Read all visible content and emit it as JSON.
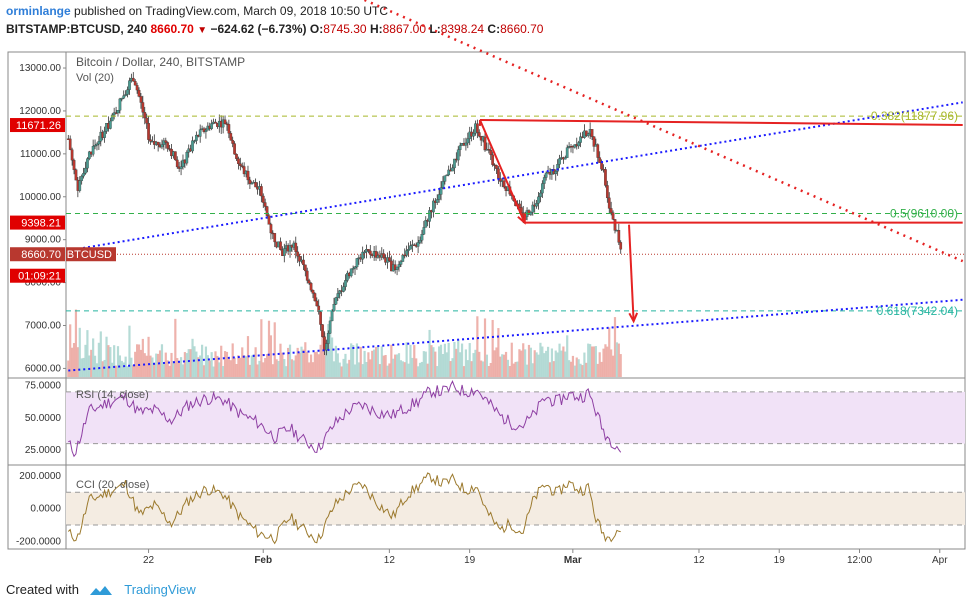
{
  "header": {
    "user": "orminlange",
    "published_text": "published on TradingView.com, March 09, 2018 10:50 UTC",
    "symbol": "BITSTAMP:BTCUSD, 240",
    "last": "8660.70",
    "change": "−624.62 (−6.73%)",
    "o_label": "O:",
    "o": "8745.30",
    "h_label": "H:",
    "h": "8867.00",
    "l_label": "L:",
    "l": "8398.24",
    "c_label": "C:",
    "c": "8660.70"
  },
  "footer": {
    "created_with": "Created with",
    "brand": "TradingView"
  },
  "colors": {
    "up": "#4a9b91",
    "down": "#b8382f",
    "wick": "#333333",
    "trend_blue": "#1a1aff",
    "trend_red": "#e52222",
    "fib_green": "#33b04a",
    "fib_olive": "#a8b82a",
    "fib_teal": "#26b5a0",
    "rsi": "#8e3fa3",
    "cci": "#9c7a2e",
    "rsi_band": "#f1e2f7",
    "cci_band": "#f4ece2"
  },
  "chart_data": [
    {
      "type": "candlestick",
      "title": "Bitcoin / Dollar, 240, BITSTAMP",
      "ylim": [
        5800,
        13350
      ],
      "y_ticks": [
        "13000.00",
        "12000.00",
        "11000.00",
        "10000.00",
        "9000.00",
        "8000.00",
        "7000.00",
        "6000.00"
      ],
      "y_tick_values": [
        13000,
        12000,
        11000,
        10000,
        9000,
        8000,
        7000,
        6000
      ],
      "x_ticks": [
        "22",
        "Feb",
        "12",
        "19",
        "Mar",
        "12",
        "19",
        "12:00",
        "Apr"
      ],
      "x_tick_days": [
        0,
        10,
        21,
        28,
        37,
        48,
        55,
        62,
        69
      ],
      "x_range_days": [
        -7.2,
        71.2
      ],
      "data_end_day": 41.3,
      "price_path": [
        [
          -7,
          11350
        ],
        [
          -6.2,
          10200
        ],
        [
          -5.2,
          11000
        ],
        [
          -3.2,
          11800
        ],
        [
          -1.9,
          12550
        ],
        [
          -1.3,
          12800
        ],
        [
          -0.7,
          12200
        ],
        [
          0.2,
          11200
        ],
        [
          1.5,
          11300
        ],
        [
          2.8,
          10650
        ],
        [
          4.2,
          11400
        ],
        [
          5.5,
          11700
        ],
        [
          6.8,
          11750
        ],
        [
          7.8,
          10800
        ],
        [
          8.8,
          10400
        ],
        [
          9.8,
          10100
        ],
        [
          10.6,
          9250
        ],
        [
          11.6,
          8700
        ],
        [
          12.6,
          8900
        ],
        [
          13.6,
          8300
        ],
        [
          14.6,
          7600
        ],
        [
          15.4,
          6400
        ],
        [
          16.2,
          7500
        ],
        [
          17.4,
          8200
        ],
        [
          18.6,
          8650
        ],
        [
          19.5,
          8700
        ],
        [
          20.5,
          8600
        ],
        [
          21.4,
          8300
        ],
        [
          22.5,
          8750
        ],
        [
          23.6,
          8950
        ],
        [
          24.6,
          9700
        ],
        [
          25.6,
          10250
        ],
        [
          26.6,
          10800
        ],
        [
          27.6,
          11300
        ],
        [
          28.6,
          11650
        ],
        [
          29.5,
          11100
        ],
        [
          30.6,
          10450
        ],
        [
          31.6,
          10100
        ],
        [
          32.6,
          9500
        ],
        [
          33.6,
          9800
        ],
        [
          34.6,
          10450
        ],
        [
          35.6,
          10700
        ],
        [
          36.6,
          11100
        ],
        [
          37.6,
          11350
        ],
        [
          38.4,
          11550
        ],
        [
          38.9,
          11200
        ],
        [
          39.6,
          10650
        ],
        [
          40.2,
          9800
        ],
        [
          40.8,
          9200
        ],
        [
          41.3,
          8660
        ]
      ],
      "volume_max_value": 1,
      "price_labels": [
        {
          "text": "11671.26",
          "value": 11671.26
        },
        {
          "text": "9398.21",
          "value": 9398.21
        },
        {
          "text": "8660.70",
          "value": 8660.7
        },
        {
          "text": "BTCUSD",
          "value": 8660.7
        },
        {
          "text": "01:09:21",
          "value": 8160
        }
      ],
      "fib_levels": [
        {
          "label": "0.382(11877.96)",
          "value": 11877.96
        },
        {
          "label": "0.5(9610.00)",
          "value": 9610.0
        },
        {
          "label": "0.618(7342.04)",
          "value": 7342.04
        }
      ],
      "volume_legend": "Vol (20)",
      "annotations": {
        "upper_trend_blue": [
          [
            -7,
            8750
          ],
          [
            71,
            12200
          ]
        ],
        "lower_trend_blue": [
          [
            -7,
            5950
          ],
          [
            71,
            7600
          ]
        ],
        "red_trend_dotted": [
          [
            11,
            15500
          ],
          [
            71,
            8500
          ]
        ],
        "red_box_top": [
          [
            28.9,
            11790
          ],
          [
            71,
            11671.26
          ]
        ],
        "red_box_bottom": [
          [
            32.8,
            9398.21
          ],
          [
            71,
            9398.21
          ]
        ],
        "red_arrow_diag": [
          [
            28.9,
            11790
          ],
          [
            32.8,
            9398.21
          ]
        ],
        "red_arrow_down": [
          [
            41.9,
            9350
          ],
          [
            42.3,
            7100
          ]
        ]
      }
    },
    {
      "type": "line",
      "name": "RSI (14, close)",
      "ylim": [
        15,
        80
      ],
      "y_ticks": [
        "75.0000",
        "50.0000",
        "25.0000"
      ],
      "y_tick_values": [
        75,
        50,
        25
      ],
      "band": [
        30,
        70
      ],
      "path": [
        [
          -7,
          30
        ],
        [
          -6.4,
          23
        ],
        [
          -5.2,
          55
        ],
        [
          -3.5,
          62
        ],
        [
          -2,
          66
        ],
        [
          -0.8,
          54
        ],
        [
          0.5,
          56
        ],
        [
          2,
          48
        ],
        [
          3.5,
          60
        ],
        [
          5,
          65
        ],
        [
          6.5,
          64
        ],
        [
          8,
          53
        ],
        [
          9.6,
          46
        ],
        [
          11,
          35
        ],
        [
          12.3,
          42
        ],
        [
          13.6,
          32
        ],
        [
          14.8,
          26
        ],
        [
          16.2,
          45
        ],
        [
          17.5,
          56
        ],
        [
          18.6,
          60
        ],
        [
          20,
          54
        ],
        [
          21.3,
          52
        ],
        [
          22.5,
          58
        ],
        [
          23.6,
          63
        ],
        [
          24.6,
          71
        ],
        [
          25.6,
          70
        ],
        [
          26.6,
          74
        ],
        [
          27.6,
          70
        ],
        [
          28.6,
          72
        ],
        [
          29.5,
          63
        ],
        [
          30.6,
          52
        ],
        [
          31.6,
          46
        ],
        [
          32.6,
          44
        ],
        [
          33.6,
          52
        ],
        [
          34.6,
          66
        ],
        [
          35.6,
          62
        ],
        [
          36.6,
          68
        ],
        [
          37.6,
          66
        ],
        [
          38.4,
          69
        ],
        [
          38.9,
          58
        ],
        [
          39.6,
          41
        ],
        [
          40.2,
          33
        ],
        [
          40.8,
          30
        ],
        [
          41.3,
          22
        ]
      ]
    },
    {
      "type": "line",
      "name": "CCI (20, close)",
      "ylim": [
        -240,
        260
      ],
      "y_ticks": [
        "200.0000",
        "0.0000",
        "-200.0000"
      ],
      "y_tick_values": [
        200,
        0,
        -200
      ],
      "band": [
        -100,
        100
      ],
      "path": [
        [
          -7,
          -150
        ],
        [
          -6.2,
          -180
        ],
        [
          -5.2,
          50
        ],
        [
          -3.5,
          100
        ],
        [
          -2,
          150
        ],
        [
          -0.8,
          -40
        ],
        [
          0.5,
          20
        ],
        [
          2,
          -90
        ],
        [
          3.5,
          50
        ],
        [
          5,
          120
        ],
        [
          6.5,
          90
        ],
        [
          8,
          -50
        ],
        [
          9.6,
          -150
        ],
        [
          11,
          -180
        ],
        [
          12.3,
          -50
        ],
        [
          13.6,
          -130
        ],
        [
          14.8,
          -190
        ],
        [
          16.2,
          20
        ],
        [
          17.5,
          110
        ],
        [
          18.6,
          150
        ],
        [
          20,
          30
        ],
        [
          21.3,
          -50
        ],
        [
          22.5,
          80
        ],
        [
          23.6,
          140
        ],
        [
          24.6,
          200
        ],
        [
          25.6,
          150
        ],
        [
          26.6,
          180
        ],
        [
          27.6,
          110
        ],
        [
          28.6,
          140
        ],
        [
          29.5,
          -20
        ],
        [
          30.6,
          -130
        ],
        [
          31.6,
          -90
        ],
        [
          32.6,
          -150
        ],
        [
          33.6,
          60
        ],
        [
          34.6,
          150
        ],
        [
          35.6,
          90
        ],
        [
          36.6,
          160
        ],
        [
          37.6,
          110
        ],
        [
          38.4,
          130
        ],
        [
          38.9,
          -40
        ],
        [
          39.6,
          -150
        ],
        [
          40.2,
          -180
        ],
        [
          40.8,
          -120
        ],
        [
          41.3,
          -140
        ]
      ]
    }
  ]
}
